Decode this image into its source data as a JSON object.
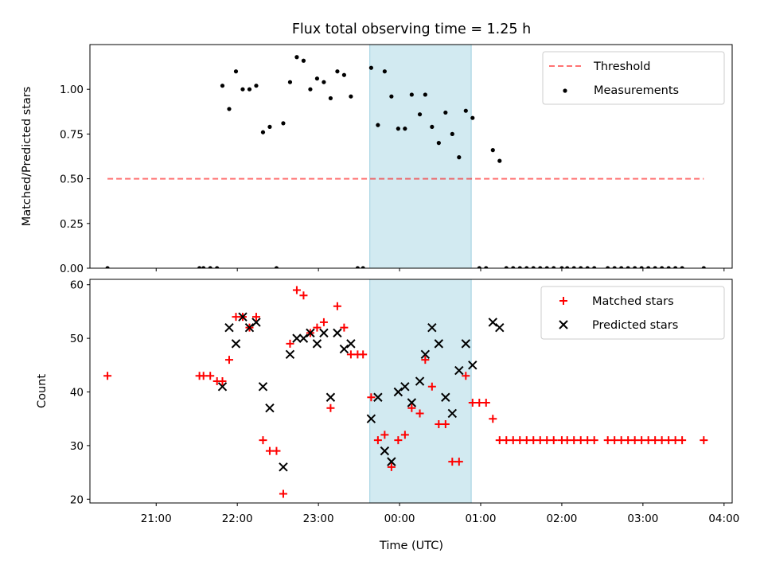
{
  "chart_data": {
    "type": "scatter",
    "title": "Flux total observing time = 1.25 h",
    "xlabel": "Time (UTC)",
    "x_ticks": [
      "21:00",
      "22:00",
      "23:00",
      "00:00",
      "01:00",
      "02:00",
      "03:00",
      "04:00"
    ],
    "x_range": [
      "20:11",
      "04:06"
    ],
    "highlight_span": {
      "start": "23:38",
      "end": "00:53"
    },
    "colors": {
      "highlight": "#add8e6",
      "threshold": "#ff0000",
      "measurements": "#000000",
      "matched": "#ff0000",
      "predicted": "#000000"
    },
    "panels": [
      {
        "ylabel": "Matched/Predicted stars",
        "ylim": [
          0,
          1.25
        ],
        "y_ticks": [
          "0.00",
          "0.25",
          "0.50",
          "0.75",
          "1.00"
        ],
        "legend_position": "top-right",
        "series": [
          {
            "name": "Threshold",
            "style": "dashed-line",
            "points": [
              [
                "20:24",
                0.5
              ],
              [
                "03:45",
                0.5
              ]
            ]
          },
          {
            "name": "Measurements",
            "style": "dot",
            "points": [
              [
                "20:24",
                0.0
              ],
              [
                "21:32",
                0.0
              ],
              [
                "21:35",
                0.0
              ],
              [
                "21:40",
                0.0
              ],
              [
                "21:45",
                0.0
              ],
              [
                "21:49",
                1.02
              ],
              [
                "21:54",
                0.89
              ],
              [
                "21:59",
                1.1
              ],
              [
                "22:04",
                1.0
              ],
              [
                "22:09",
                1.0
              ],
              [
                "22:14",
                1.02
              ],
              [
                "22:19",
                0.76
              ],
              [
                "22:24",
                0.79
              ],
              [
                "22:29",
                0.0
              ],
              [
                "22:34",
                0.81
              ],
              [
                "22:39",
                1.04
              ],
              [
                "22:44",
                1.18
              ],
              [
                "22:49",
                1.16
              ],
              [
                "22:54",
                1.0
              ],
              [
                "22:59",
                1.06
              ],
              [
                "23:04",
                1.04
              ],
              [
                "23:09",
                0.95
              ],
              [
                "23:14",
                1.1
              ],
              [
                "23:19",
                1.08
              ],
              [
                "23:24",
                0.96
              ],
              [
                "23:29",
                0.0
              ],
              [
                "23:33",
                0.0
              ],
              [
                "23:39",
                1.12
              ],
              [
                "23:44",
                0.8
              ],
              [
                "23:49",
                1.1
              ],
              [
                "23:54",
                0.96
              ],
              [
                "23:59",
                0.78
              ],
              [
                "00:04",
                0.78
              ],
              [
                "00:09",
                0.97
              ],
              [
                "00:15",
                0.86
              ],
              [
                "00:19",
                0.97
              ],
              [
                "00:24",
                0.79
              ],
              [
                "00:29",
                0.7
              ],
              [
                "00:34",
                0.87
              ],
              [
                "00:39",
                0.75
              ],
              [
                "00:44",
                0.62
              ],
              [
                "00:49",
                0.88
              ],
              [
                "00:54",
                0.84
              ],
              [
                "00:59",
                0.0
              ],
              [
                "01:04",
                0.0
              ],
              [
                "01:09",
                0.66
              ],
              [
                "01:14",
                0.6
              ],
              [
                "01:19",
                0.0
              ],
              [
                "01:24",
                0.0
              ],
              [
                "01:29",
                0.0
              ],
              [
                "01:34",
                0.0
              ],
              [
                "01:39",
                0.0
              ],
              [
                "01:44",
                0.0
              ],
              [
                "01:49",
                0.0
              ],
              [
                "01:54",
                0.0
              ],
              [
                "02:00",
                0.0
              ],
              [
                "02:04",
                0.0
              ],
              [
                "02:09",
                0.0
              ],
              [
                "02:14",
                0.0
              ],
              [
                "02:19",
                0.0
              ],
              [
                "02:24",
                0.0
              ],
              [
                "02:34",
                0.0
              ],
              [
                "02:39",
                0.0
              ],
              [
                "02:44",
                0.0
              ],
              [
                "02:49",
                0.0
              ],
              [
                "02:54",
                0.0
              ],
              [
                "02:59",
                0.0
              ],
              [
                "03:04",
                0.0
              ],
              [
                "03:09",
                0.0
              ],
              [
                "03:14",
                0.0
              ],
              [
                "03:19",
                0.0
              ],
              [
                "03:24",
                0.0
              ],
              [
                "03:29",
                0.0
              ],
              [
                "03:45",
                0.0
              ]
            ]
          }
        ]
      },
      {
        "ylabel": "Count",
        "ylim": [
          19.3,
          61
        ],
        "y_ticks": [
          "20",
          "30",
          "40",
          "50",
          "60"
        ],
        "legend_position": "top-right",
        "series": [
          {
            "name": "Matched stars",
            "style": "plus",
            "points": [
              [
                "20:24",
                43
              ],
              [
                "21:32",
                43
              ],
              [
                "21:35",
                43
              ],
              [
                "21:40",
                43
              ],
              [
                "21:45",
                42
              ],
              [
                "21:49",
                42
              ],
              [
                "21:54",
                46
              ],
              [
                "21:59",
                54
              ],
              [
                "22:04",
                54
              ],
              [
                "22:09",
                52
              ],
              [
                "22:14",
                54
              ],
              [
                "22:19",
                31
              ],
              [
                "22:24",
                29
              ],
              [
                "22:29",
                29
              ],
              [
                "22:34",
                21
              ],
              [
                "22:39",
                49
              ],
              [
                "22:44",
                59
              ],
              [
                "22:49",
                58
              ],
              [
                "22:54",
                51
              ],
              [
                "22:59",
                52
              ],
              [
                "23:04",
                53
              ],
              [
                "23:09",
                37
              ],
              [
                "23:14",
                56
              ],
              [
                "23:19",
                52
              ],
              [
                "23:24",
                47
              ],
              [
                "23:29",
                47
              ],
              [
                "23:33",
                47
              ],
              [
                "23:39",
                39
              ],
              [
                "23:44",
                31
              ],
              [
                "23:49",
                32
              ],
              [
                "23:54",
                26
              ],
              [
                "23:59",
                31
              ],
              [
                "00:04",
                32
              ],
              [
                "00:09",
                37
              ],
              [
                "00:15",
                36
              ],
              [
                "00:19",
                46
              ],
              [
                "00:24",
                41
              ],
              [
                "00:29",
                34
              ],
              [
                "00:34",
                34
              ],
              [
                "00:39",
                27
              ],
              [
                "00:44",
                27
              ],
              [
                "00:49",
                43
              ],
              [
                "00:54",
                38
              ],
              [
                "00:59",
                38
              ],
              [
                "01:04",
                38
              ],
              [
                "01:09",
                35
              ],
              [
                "01:14",
                31
              ],
              [
                "01:19",
                31
              ],
              [
                "01:24",
                31
              ],
              [
                "01:29",
                31
              ],
              [
                "01:34",
                31
              ],
              [
                "01:39",
                31
              ],
              [
                "01:44",
                31
              ],
              [
                "01:49",
                31
              ],
              [
                "01:54",
                31
              ],
              [
                "02:00",
                31
              ],
              [
                "02:04",
                31
              ],
              [
                "02:09",
                31
              ],
              [
                "02:14",
                31
              ],
              [
                "02:19",
                31
              ],
              [
                "02:24",
                31
              ],
              [
                "02:34",
                31
              ],
              [
                "02:39",
                31
              ],
              [
                "02:44",
                31
              ],
              [
                "02:49",
                31
              ],
              [
                "02:54",
                31
              ],
              [
                "02:59",
                31
              ],
              [
                "03:04",
                31
              ],
              [
                "03:09",
                31
              ],
              [
                "03:14",
                31
              ],
              [
                "03:19",
                31
              ],
              [
                "03:24",
                31
              ],
              [
                "03:29",
                31
              ],
              [
                "03:45",
                31
              ]
            ]
          },
          {
            "name": "Predicted stars",
            "style": "cross",
            "points": [
              [
                "21:49",
                41
              ],
              [
                "21:54",
                52
              ],
              [
                "21:59",
                49
              ],
              [
                "22:04",
                54
              ],
              [
                "22:09",
                52
              ],
              [
                "22:14",
                53
              ],
              [
                "22:19",
                41
              ],
              [
                "22:24",
                37
              ],
              [
                "22:34",
                26
              ],
              [
                "22:39",
                47
              ],
              [
                "22:44",
                50
              ],
              [
                "22:49",
                50
              ],
              [
                "22:54",
                51
              ],
              [
                "22:59",
                49
              ],
              [
                "23:04",
                51
              ],
              [
                "23:09",
                39
              ],
              [
                "23:14",
                51
              ],
              [
                "23:19",
                48
              ],
              [
                "23:24",
                49
              ],
              [
                "23:39",
                35
              ],
              [
                "23:44",
                39
              ],
              [
                "23:49",
                29
              ],
              [
                "23:54",
                27
              ],
              [
                "23:59",
                40
              ],
              [
                "00:04",
                41
              ],
              [
                "00:09",
                38
              ],
              [
                "00:15",
                42
              ],
              [
                "00:19",
                47
              ],
              [
                "00:24",
                52
              ],
              [
                "00:29",
                49
              ],
              [
                "00:34",
                39
              ],
              [
                "00:39",
                36
              ],
              [
                "00:44",
                44
              ],
              [
                "00:49",
                49
              ],
              [
                "00:54",
                45
              ],
              [
                "01:09",
                53
              ],
              [
                "01:14",
                52
              ]
            ]
          }
        ]
      }
    ]
  }
}
